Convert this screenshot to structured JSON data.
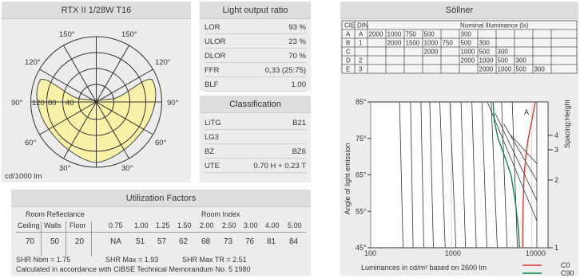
{
  "polar": {
    "title": "RTX II 1/28W T16",
    "unit": "cd/1000 lm",
    "angles": [
      "150°",
      "150°",
      "120°",
      "120°",
      "90°",
      "90°",
      "60°",
      "60°",
      "30°",
      "30°"
    ],
    "radial": [
      "120",
      "80",
      "40"
    ]
  },
  "lor": {
    "title": "Light output ratio",
    "rows": [
      {
        "k": "LOR",
        "v": "93 %"
      },
      {
        "k": "ULOR",
        "v": "23 %"
      },
      {
        "k": "DLOR",
        "v": "70 %"
      },
      {
        "k": "FFR",
        "v": "0,33 (25:75)"
      },
      {
        "k": "BLF",
        "v": "1.00"
      }
    ]
  },
  "classif": {
    "title": "Classification",
    "rows": [
      {
        "k": "LiTG",
        "v": "B21"
      },
      {
        "k": "LG3",
        "v": ""
      },
      {
        "k": "BZ",
        "v": "BZ6"
      },
      {
        "k": "UTE",
        "v": "0.70 H + 0.23 T"
      }
    ]
  },
  "util": {
    "title": "Utilization Factors",
    "room_refl": "Room Reflectance",
    "room_index": "Room Index",
    "h_ceiling": "Ceiling",
    "h_walls": "Walls",
    "h_floor": "Floor",
    "index_vals": [
      "0.75",
      "1.00",
      "1.25",
      "1.50",
      "2.00",
      "2.50",
      "3.00",
      "4.00",
      "5.00"
    ],
    "refl_vals": [
      "70",
      "50",
      "20"
    ],
    "factors": [
      "NA",
      "51",
      "57",
      "62",
      "68",
      "73",
      "76",
      "81",
      "84"
    ],
    "shr_nom": "SHR Nom = 1.75",
    "shr_max": "SHR Max = 1.93",
    "shr_max_tr": "SHR Max TR = 2.51",
    "note": "Calculated in accordance with CIBSE Technical Memorandum No. 5 1980"
  },
  "sollner": {
    "title": "Söllner",
    "h_cie": "CIE",
    "h_din": "DIN",
    "h_nominal": "Nominal Illuminance (lx)",
    "rows": [
      {
        "cie": "A",
        "din": "A",
        "vals": [
          "2000",
          "1000",
          "750",
          "500",
          "",
          "300",
          "",
          "",
          "",
          ""
        ]
      },
      {
        "cie": "B",
        "din": "1",
        "vals": [
          "",
          "2000",
          "1500",
          "1000",
          "750",
          "500",
          "300",
          "",
          "",
          ""
        ]
      },
      {
        "cie": "C",
        "din": "",
        "vals": [
          "",
          "",
          "",
          "2000",
          "",
          "1000",
          "500",
          "300",
          "",
          ""
        ]
      },
      {
        "cie": "D",
        "din": "2",
        "vals": [
          "",
          "",
          "",
          "",
          "",
          "2000",
          "1000",
          "500",
          "300",
          ""
        ]
      },
      {
        "cie": "E",
        "din": "3",
        "vals": [
          "",
          "",
          "",
          "",
          "",
          "",
          "2000",
          "1000",
          "500",
          "300"
        ]
      }
    ],
    "y_axis": "Angle of light emission",
    "y_ticks": [
      "85°",
      "75°",
      "65°",
      "55°",
      "45°"
    ],
    "x_ticks": [
      "100",
      "1000",
      "10000"
    ],
    "x_label": "Luminances in cd/m² based on 2600 lm",
    "r_axis": "Spacing:Height",
    "r_ticks": [
      "4",
      "3",
      "2",
      "1"
    ],
    "curve_label": "A",
    "legend": [
      {
        "name": "C0",
        "color": "#e0362a"
      },
      {
        "name": "C90",
        "color": "#0a8a4a"
      }
    ]
  }
}
